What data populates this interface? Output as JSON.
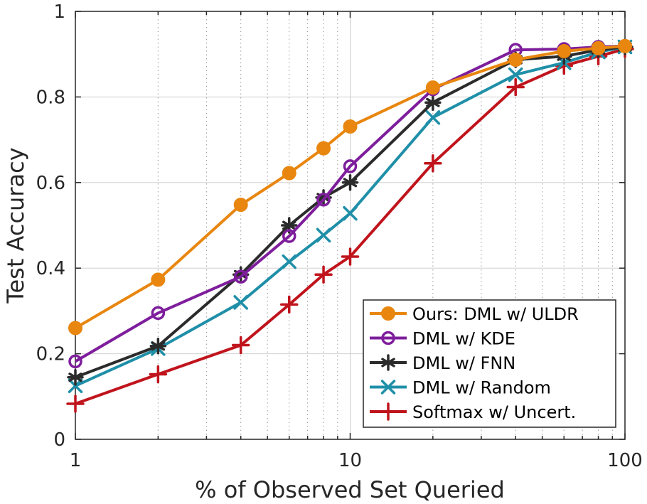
{
  "chart_data": {
    "type": "line",
    "xlabel": "% of Observed Set Queried",
    "ylabel": "Test Accuracy",
    "xscale": "log",
    "xlim": [
      1,
      100
    ],
    "ylim": [
      0,
      1
    ],
    "xticks": [
      1,
      10,
      100
    ],
    "xtick_labels": [
      "1",
      "10",
      "100"
    ],
    "yticks": [
      0,
      0.2,
      0.4,
      0.6,
      0.8,
      1
    ],
    "ytick_labels": [
      "0",
      "0.2",
      "0.4",
      "0.6",
      "0.8",
      "1"
    ],
    "grid": true,
    "legend_position": "bottom-right",
    "series": [
      {
        "name": "Ours: DML w/ ULDR",
        "color": "#E8860F",
        "marker": "filled-circle",
        "x": [
          1,
          2,
          4,
          6,
          8,
          10,
          20,
          40,
          60,
          80,
          100
        ],
        "y": [
          0.26,
          0.373,
          0.548,
          0.622,
          0.68,
          0.731,
          0.822,
          0.887,
          0.907,
          0.914,
          0.919
        ]
      },
      {
        "name": "DML w/ KDE",
        "color": "#7E1E9C",
        "marker": "open-circle",
        "x": [
          1,
          2,
          4,
          6,
          8,
          10,
          20,
          40,
          60,
          80,
          100
        ],
        "y": [
          0.182,
          0.295,
          0.38,
          0.475,
          0.56,
          0.638,
          0.818,
          0.91,
          0.912,
          0.917,
          0.919
        ]
      },
      {
        "name": "DML w/ FNN",
        "color": "#2B2B2B",
        "marker": "asterisk",
        "x": [
          1,
          2,
          4,
          6,
          8,
          10,
          20,
          40,
          60,
          80,
          100
        ],
        "y": [
          0.145,
          0.218,
          0.385,
          0.5,
          0.565,
          0.6,
          0.787,
          0.887,
          0.895,
          0.91,
          0.917
        ]
      },
      {
        "name": "DML w/ Random",
        "color": "#1F8FA8",
        "marker": "x",
        "x": [
          1,
          2,
          4,
          6,
          8,
          10,
          20,
          40,
          60,
          80,
          100
        ],
        "y": [
          0.125,
          0.212,
          0.32,
          0.415,
          0.477,
          0.528,
          0.752,
          0.852,
          0.88,
          0.905,
          0.917
        ]
      },
      {
        "name": "Softmax w/ Uncert.",
        "color": "#C0141C",
        "marker": "plus",
        "x": [
          1,
          2,
          4,
          6,
          8,
          10,
          20,
          40,
          60,
          80,
          100
        ],
        "y": [
          0.083,
          0.152,
          0.22,
          0.315,
          0.385,
          0.427,
          0.645,
          0.823,
          0.873,
          0.895,
          0.912
        ]
      }
    ]
  }
}
